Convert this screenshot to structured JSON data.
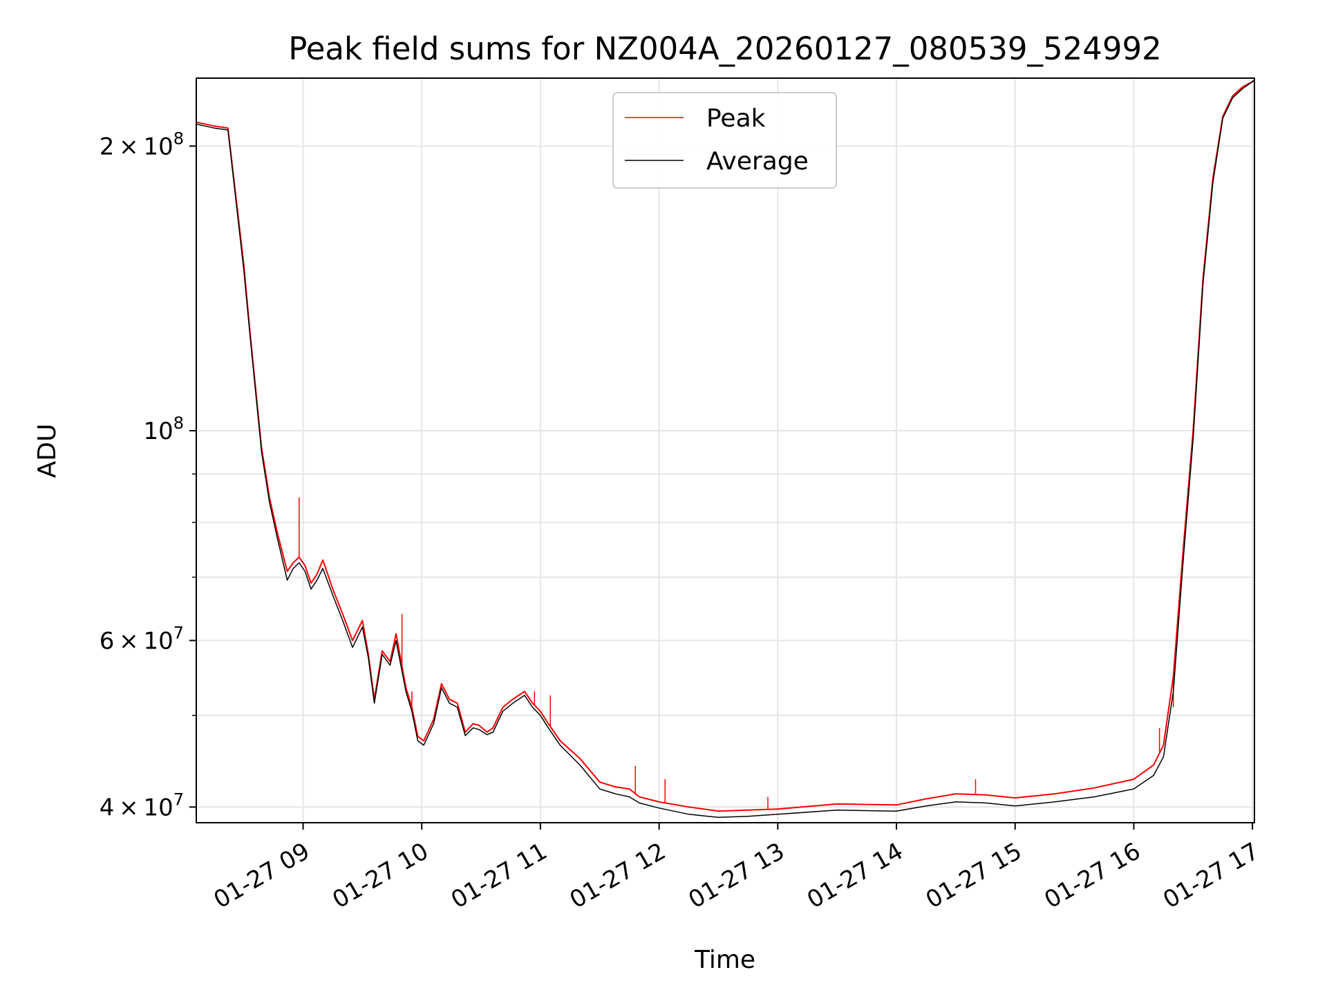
{
  "chart_data": {
    "type": "line",
    "title": "Peak field sums for NZ004A_20260127_080539_524992",
    "xlabel": "Time",
    "ylabel": "ADU",
    "y_scale": "log",
    "ylim": [
      38500000,
      236000000
    ],
    "xlim": [
      "2026-01-27 08:06",
      "2026-01-27 17:01"
    ],
    "grid": true,
    "legend_position": "top-center",
    "x_tick_labels": [
      "01-27 09",
      "01-27 10",
      "01-27 11",
      "01-27 12",
      "01-27 13",
      "01-27 14",
      "01-27 15",
      "01-27 16",
      "01-27 17"
    ],
    "x_ticks": [
      "2026-01-27 09:00",
      "2026-01-27 10:00",
      "2026-01-27 11:00",
      "2026-01-27 12:00",
      "2026-01-27 13:00",
      "2026-01-27 14:00",
      "2026-01-27 15:00",
      "2026-01-27 16:00",
      "2026-01-27 17:00"
    ],
    "y_ticks": [
      {
        "value": 200000000,
        "mantissa": "2",
        "exponent": "8"
      },
      {
        "value": 100000000,
        "mantissa": "",
        "exponent": "8"
      },
      {
        "value": 60000000,
        "mantissa": "6",
        "exponent": "7"
      },
      {
        "value": 40000000,
        "mantissa": "4",
        "exponent": "7"
      }
    ],
    "y_minor_ticks": [
      50000000,
      70000000,
      80000000,
      90000000
    ],
    "series": [
      {
        "name": "Peak",
        "color": "#ff0000",
        "x": [
          "2026-01-27 08:06",
          "2026-01-27 08:15",
          "2026-01-27 08:22",
          "2026-01-27 08:30",
          "2026-01-27 08:33",
          "2026-01-27 08:39",
          "2026-01-27 08:43",
          "2026-01-27 08:47",
          "2026-01-27 08:52",
          "2026-01-27 08:55",
          "2026-01-27 08:58",
          "2026-01-27 09:01",
          "2026-01-27 09:04",
          "2026-01-27 09:07",
          "2026-01-27 09:10",
          "2026-01-27 09:15",
          "2026-01-27 09:20",
          "2026-01-27 09:25",
          "2026-01-27 09:30",
          "2026-01-27 09:33",
          "2026-01-27 09:36",
          "2026-01-27 09:40",
          "2026-01-27 09:44",
          "2026-01-27 09:47",
          "2026-01-27 09:52",
          "2026-01-27 09:55",
          "2026-01-27 09:58",
          "2026-01-27 10:01",
          "2026-01-27 10:06",
          "2026-01-27 10:10",
          "2026-01-27 10:14",
          "2026-01-27 10:18",
          "2026-01-27 10:22",
          "2026-01-27 10:26",
          "2026-01-27 10:29",
          "2026-01-27 10:33",
          "2026-01-27 10:36",
          "2026-01-27 10:41",
          "2026-01-27 10:46",
          "2026-01-27 10:52",
          "2026-01-27 10:56",
          "2026-01-27 11:00",
          "2026-01-27 11:04",
          "2026-01-27 11:10",
          "2026-01-27 11:20",
          "2026-01-27 11:30",
          "2026-01-27 11:38",
          "2026-01-27 11:45",
          "2026-01-27 11:50",
          "2026-01-27 12:00",
          "2026-01-27 12:15",
          "2026-01-27 12:30",
          "2026-01-27 12:45",
          "2026-01-27 13:00",
          "2026-01-27 13:30",
          "2026-01-27 14:00",
          "2026-01-27 14:15",
          "2026-01-27 14:30",
          "2026-01-27 14:45",
          "2026-01-27 15:00",
          "2026-01-27 15:20",
          "2026-01-27 15:40",
          "2026-01-27 16:00",
          "2026-01-27 16:10",
          "2026-01-27 16:15",
          "2026-01-27 16:20",
          "2026-01-27 16:25",
          "2026-01-27 16:30",
          "2026-01-27 16:35",
          "2026-01-27 16:40",
          "2026-01-27 16:45",
          "2026-01-27 16:50",
          "2026-01-27 16:55",
          "2026-01-27 17:00",
          "2026-01-27 17:01"
        ],
        "values": [
          212000000,
          210000000,
          209000000,
          150000000,
          128000000,
          96000000,
          85000000,
          78000000,
          71000000,
          72500000,
          73500000,
          72000000,
          69000000,
          70500000,
          73000000,
          68000000,
          64000000,
          60000000,
          63000000,
          58000000,
          52000000,
          58500000,
          57000000,
          61000000,
          53500000,
          51000000,
          47500000,
          47000000,
          49500000,
          54000000,
          52000000,
          51500000,
          48000000,
          49000000,
          48800000,
          48000000,
          48500000,
          51000000,
          52000000,
          53000000,
          51500000,
          50500000,
          49000000,
          47000000,
          45000000,
          42500000,
          42000000,
          41800000,
          41000000,
          40500000,
          40000000,
          39600000,
          39700000,
          39800000,
          40300000,
          40200000,
          40800000,
          41300000,
          41200000,
          40900000,
          41300000,
          41900000,
          42800000,
          44300000,
          46500000,
          55000000,
          75000000,
          100000000,
          145000000,
          185000000,
          215000000,
          226000000,
          231000000,
          234000000,
          235000000
        ],
        "spikes": [
          {
            "x": "2026-01-27 08:58",
            "value": 85000000
          },
          {
            "x": "2026-01-27 09:50",
            "value": 64000000
          },
          {
            "x": "2026-01-27 09:55",
            "value": 53000000
          },
          {
            "x": "2026-01-27 10:57",
            "value": 53000000
          },
          {
            "x": "2026-01-27 11:05",
            "value": 52500000
          },
          {
            "x": "2026-01-27 11:48",
            "value": 44200000
          },
          {
            "x": "2026-01-27 12:03",
            "value": 42800000
          },
          {
            "x": "2026-01-27 12:55",
            "value": 41000000
          },
          {
            "x": "2026-01-27 14:40",
            "value": 42800000
          },
          {
            "x": "2026-01-27 16:13",
            "value": 48500000
          },
          {
            "x": "2026-01-27 16:20",
            "value": 51000000
          }
        ]
      },
      {
        "name": "Average",
        "color": "#000000",
        "x": [
          "2026-01-27 08:06",
          "2026-01-27 08:15",
          "2026-01-27 08:22",
          "2026-01-27 08:30",
          "2026-01-27 08:33",
          "2026-01-27 08:39",
          "2026-01-27 08:43",
          "2026-01-27 08:47",
          "2026-01-27 08:52",
          "2026-01-27 08:55",
          "2026-01-27 08:58",
          "2026-01-27 09:01",
          "2026-01-27 09:04",
          "2026-01-27 09:07",
          "2026-01-27 09:10",
          "2026-01-27 09:15",
          "2026-01-27 09:20",
          "2026-01-27 09:25",
          "2026-01-27 09:30",
          "2026-01-27 09:33",
          "2026-01-27 09:36",
          "2026-01-27 09:40",
          "2026-01-27 09:44",
          "2026-01-27 09:47",
          "2026-01-27 09:52",
          "2026-01-27 09:55",
          "2026-01-27 09:58",
          "2026-01-27 10:01",
          "2026-01-27 10:06",
          "2026-01-27 10:10",
          "2026-01-27 10:14",
          "2026-01-27 10:18",
          "2026-01-27 10:22",
          "2026-01-27 10:26",
          "2026-01-27 10:29",
          "2026-01-27 10:33",
          "2026-01-27 10:36",
          "2026-01-27 10:41",
          "2026-01-27 10:46",
          "2026-01-27 10:52",
          "2026-01-27 10:56",
          "2026-01-27 11:00",
          "2026-01-27 11:04",
          "2026-01-27 11:10",
          "2026-01-27 11:20",
          "2026-01-27 11:30",
          "2026-01-27 11:38",
          "2026-01-27 11:45",
          "2026-01-27 11:50",
          "2026-01-27 12:00",
          "2026-01-27 12:15",
          "2026-01-27 12:30",
          "2026-01-27 12:45",
          "2026-01-27 13:00",
          "2026-01-27 13:30",
          "2026-01-27 14:00",
          "2026-01-27 14:15",
          "2026-01-27 14:30",
          "2026-01-27 14:45",
          "2026-01-27 15:00",
          "2026-01-27 15:20",
          "2026-01-27 15:40",
          "2026-01-27 16:00",
          "2026-01-27 16:10",
          "2026-01-27 16:15",
          "2026-01-27 16:20",
          "2026-01-27 16:25",
          "2026-01-27 16:30",
          "2026-01-27 16:35",
          "2026-01-27 16:40",
          "2026-01-27 16:45",
          "2026-01-27 16:50",
          "2026-01-27 16:55",
          "2026-01-27 17:00",
          "2026-01-27 17:01"
        ],
        "values": [
          211000000,
          209000000,
          208000000,
          148000000,
          127000000,
          95000000,
          84000000,
          77000000,
          69500000,
          71500000,
          72500000,
          71000000,
          68000000,
          69500000,
          71500000,
          67000000,
          63000000,
          59000000,
          62000000,
          57500000,
          51500000,
          58000000,
          56500000,
          60000000,
          53000000,
          50500000,
          47000000,
          46500000,
          49000000,
          53500000,
          51500000,
          51000000,
          47600000,
          48500000,
          48300000,
          47700000,
          48000000,
          50500000,
          51500000,
          52500000,
          51000000,
          50000000,
          48500000,
          46500000,
          44300000,
          41800000,
          41300000,
          41000000,
          40400000,
          39900000,
          39300000,
          39000000,
          39100000,
          39300000,
          39700000,
          39600000,
          40100000,
          40500000,
          40400000,
          40100000,
          40500000,
          41000000,
          41800000,
          43200000,
          45200000,
          53000000,
          73000000,
          98000000,
          143000000,
          183000000,
          214000000,
          225000000,
          230000000,
          234000000,
          235000000
        ]
      }
    ]
  }
}
